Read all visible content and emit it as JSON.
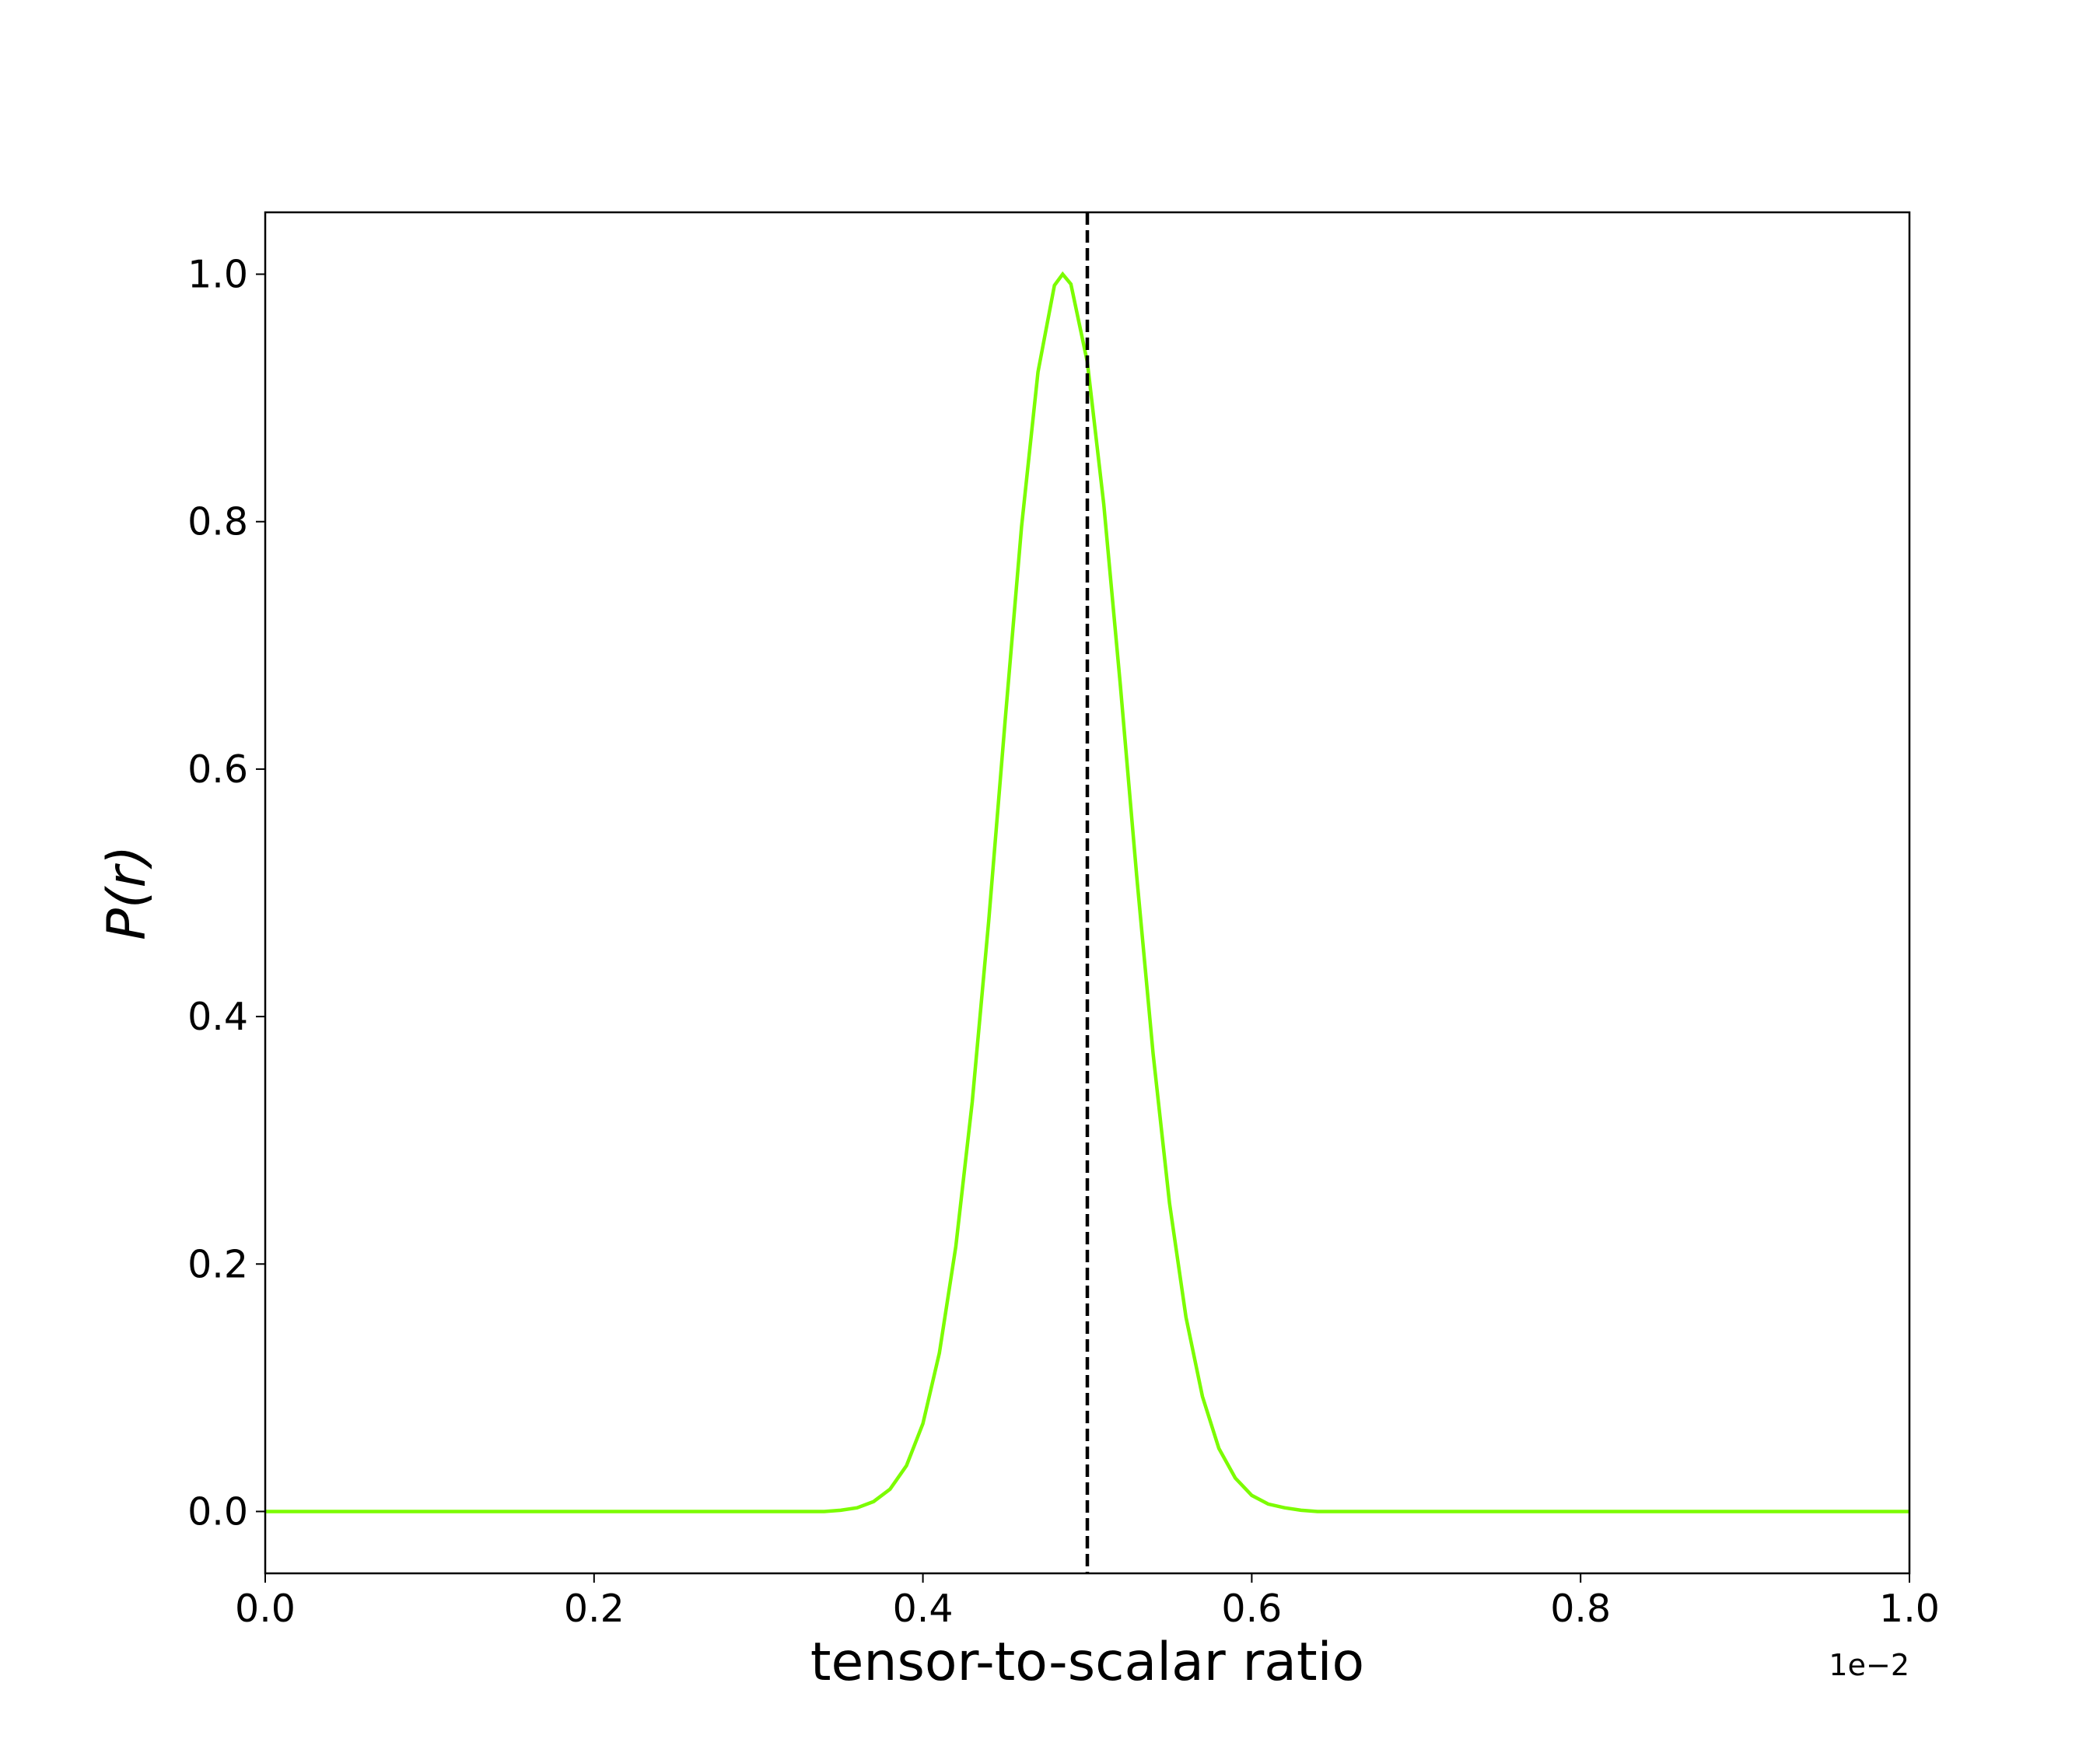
{
  "chart_data": {
    "type": "line",
    "x_label": "tensor-to-scalar ratio",
    "y_label": "P(r)",
    "x_offset_label": "1e−2",
    "x": [
      0,
      0.1,
      0.2,
      0.3,
      0.34,
      0.35,
      0.36,
      0.37,
      0.38,
      0.39,
      0.4,
      0.41,
      0.42,
      0.43,
      0.44,
      0.45,
      0.46,
      0.47,
      0.48,
      0.485,
      0.49,
      0.5,
      0.51,
      0.52,
      0.53,
      0.54,
      0.55,
      0.56,
      0.57,
      0.58,
      0.59,
      0.6,
      0.61,
      0.62,
      0.63,
      0.64,
      0.7,
      0.8,
      0.9,
      1.0
    ],
    "series": [
      {
        "color": "#7cfc00",
        "values": [
          0,
          0,
          0,
          0,
          0,
          0.001,
          0.003,
          0.008,
          0.018,
          0.037,
          0.071,
          0.128,
          0.214,
          0.331,
          0.477,
          0.639,
          0.796,
          0.921,
          0.991,
          1.0,
          0.992,
          0.929,
          0.814,
          0.669,
          0.514,
          0.37,
          0.249,
          0.157,
          0.093,
          0.051,
          0.027,
          0.013,
          0.006,
          0.003,
          0.001,
          0,
          0,
          0,
          0,
          0
        ]
      }
    ],
    "vline": {
      "x": 0.5,
      "color": "#000000",
      "dashed": true
    },
    "xlim": [
      0,
      1.0
    ],
    "ylim": [
      -0.05,
      1.05
    ],
    "xticks": [
      {
        "value": 0,
        "label": "0.0"
      },
      0.2,
      0.4,
      0.6,
      0.8,
      {
        "value": 1.0,
        "label": "1.0"
      }
    ],
    "yticks": [
      {
        "value": 0,
        "label": "0.0"
      },
      0.2,
      0.4,
      0.6,
      0.8,
      {
        "value": 1.0,
        "label": "1.0"
      }
    ],
    "grid": false
  }
}
